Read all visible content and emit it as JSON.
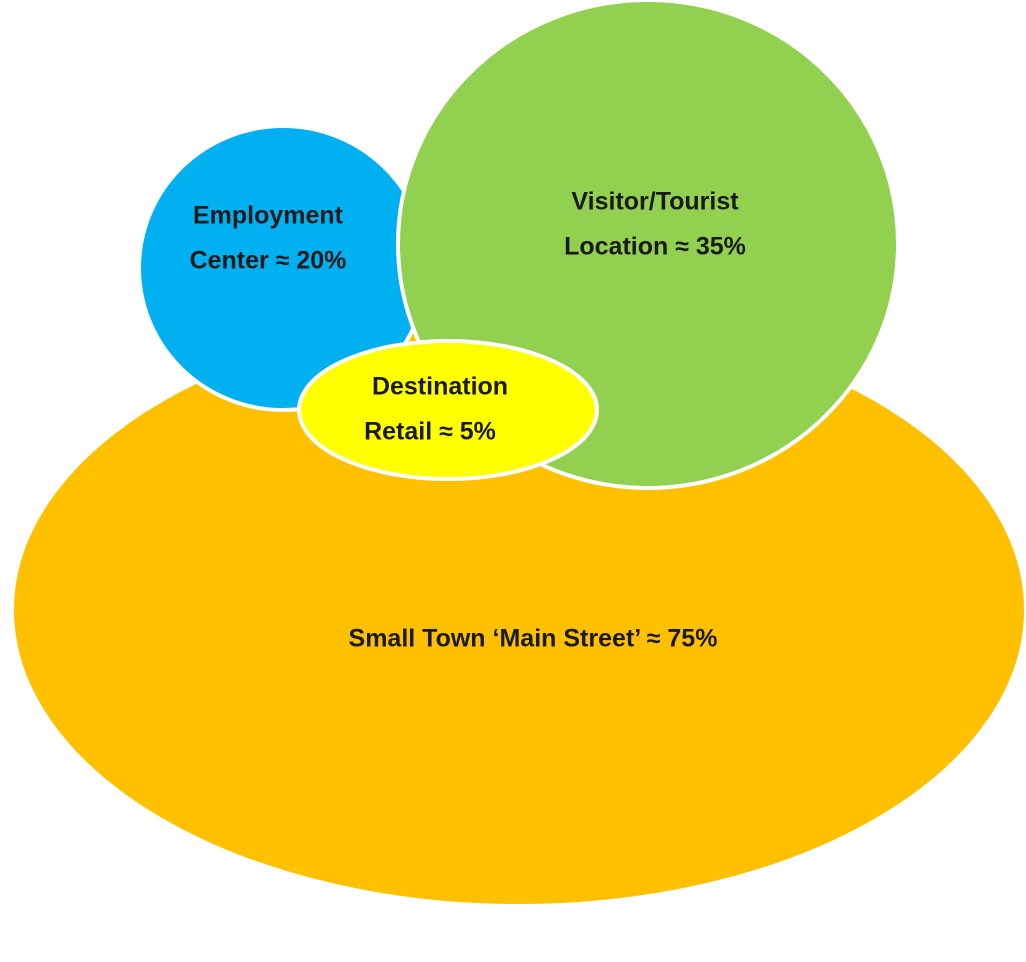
{
  "nodes": [
    {
      "lines": [
        "Small Town ‘Main Street’ ≈ 75%"
      ]
    },
    {
      "lines": [
        "Employment",
        "Center ≈ 20%"
      ]
    },
    {
      "lines": [
        "Visitor/Tourist",
        "Location ≈ 35%"
      ]
    },
    {
      "lines": [
        "Destination",
        "Retail ≈ 5%"
      ]
    }
  ]
}
